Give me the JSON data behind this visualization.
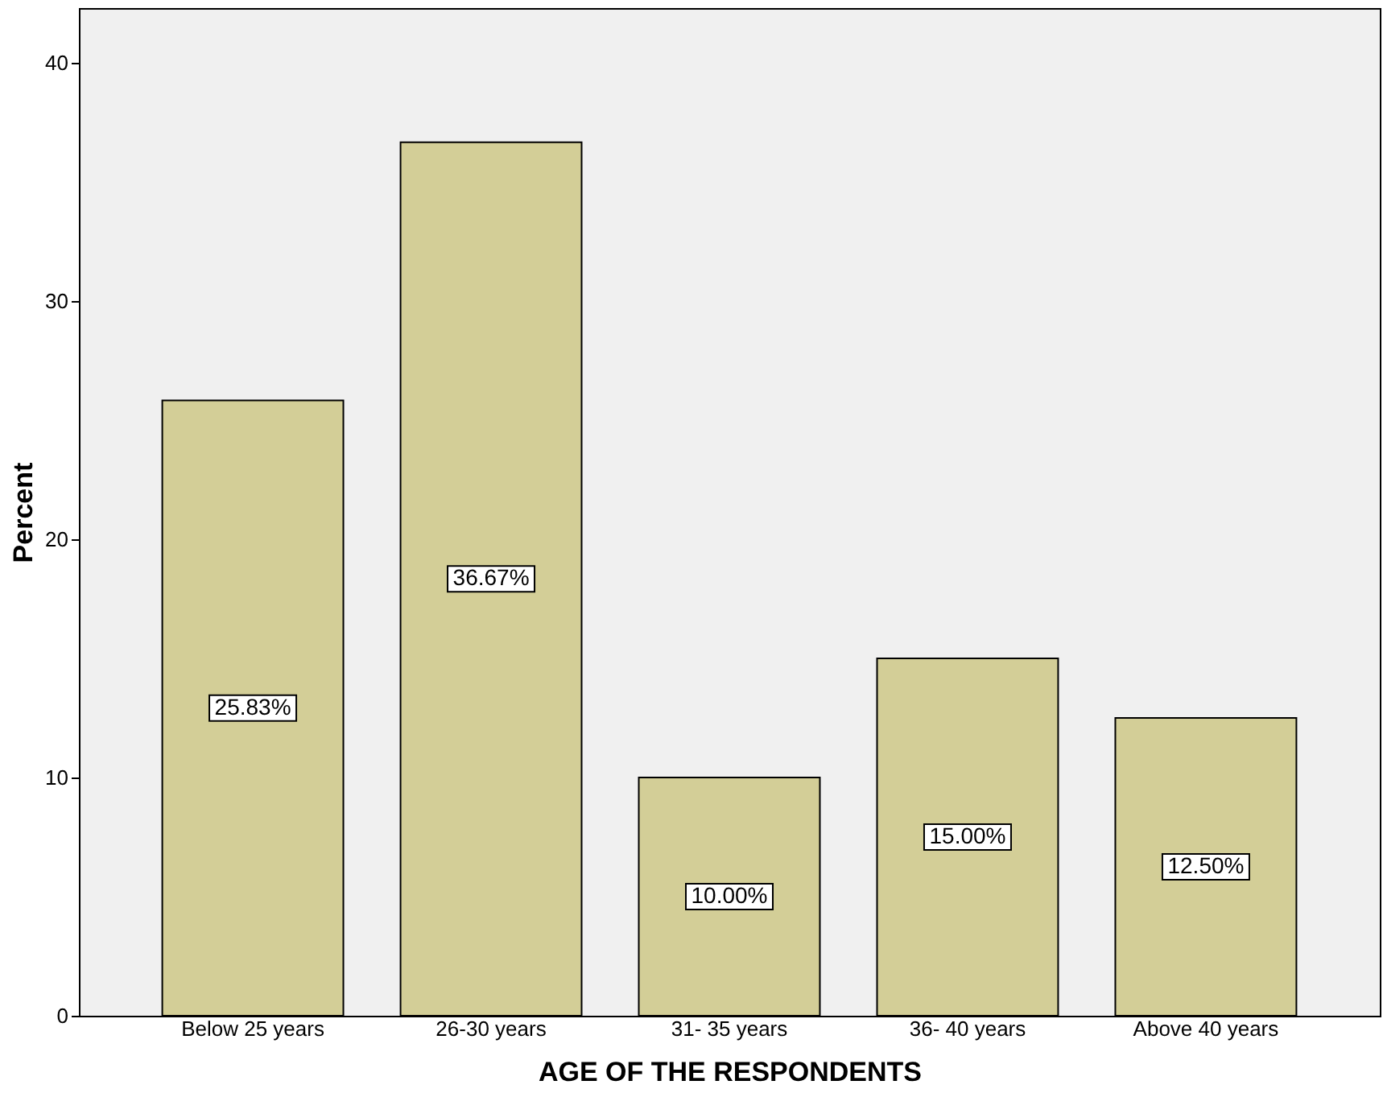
{
  "chart_data": {
    "type": "bar",
    "xlabel": "AGE OF THE RESPONDENTS",
    "ylabel": "Percent",
    "categories": [
      "Below 25 years",
      "26-30 years",
      "31- 35 years",
      "36- 40 years",
      "Above 40 years"
    ],
    "values": [
      25.83,
      36.67,
      10.0,
      15.0,
      12.5
    ],
    "value_labels": [
      "25.83%",
      "36.67%",
      "10.00%",
      "15.00%",
      "12.50%"
    ],
    "color": "#d3ce97",
    "ylim": [
      0,
      42.3
    ],
    "yticks": [
      0,
      10,
      20,
      30,
      40
    ],
    "grid": false
  }
}
